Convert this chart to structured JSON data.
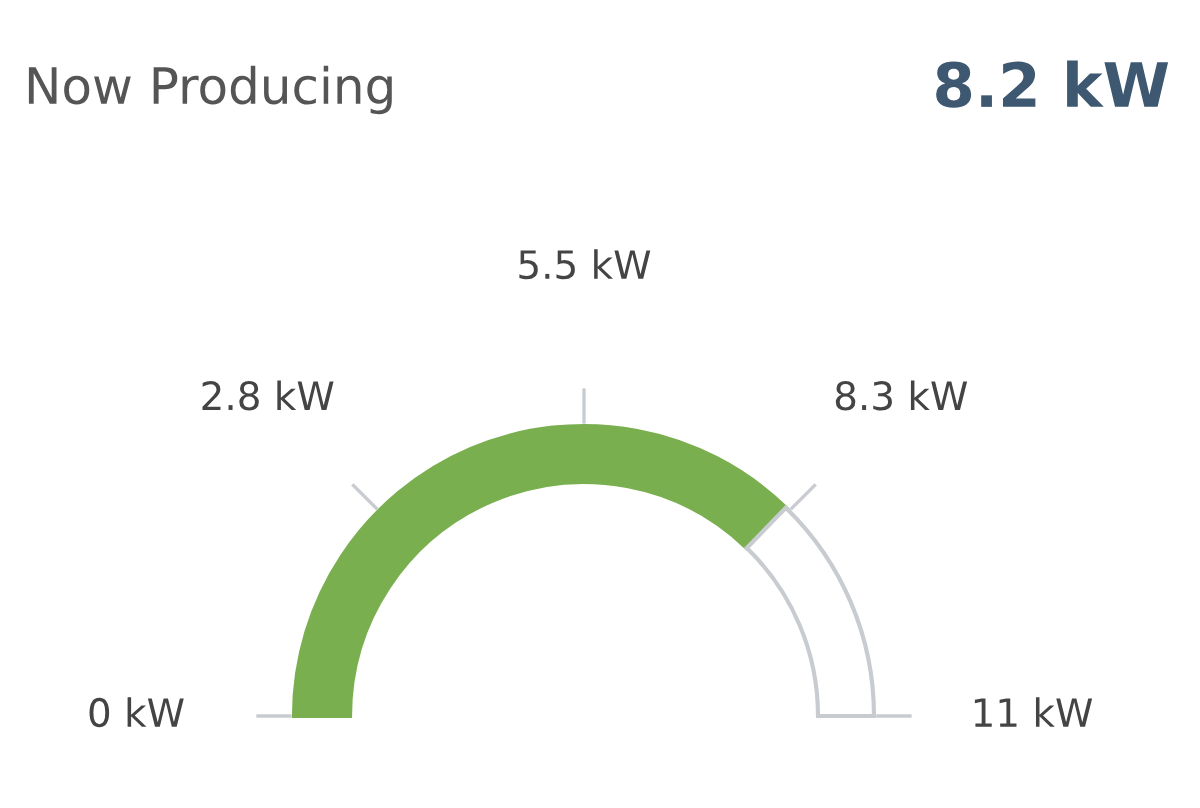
{
  "chart_data": {
    "type": "donut",
    "title": "Now Producing",
    "subtitle": "8.2 kW",
    "categories": [
      null,
      null
    ],
    "values": [
      74.5,
      25.5
    ],
    "colors": [
      "#7aaf4f",
      "#ffffff"
    ],
    "annotations": [
      "0 kW",
      "2.8 kW",
      "5.5 kW",
      "8.3 kW",
      "11 kW"
    ]
  }
}
